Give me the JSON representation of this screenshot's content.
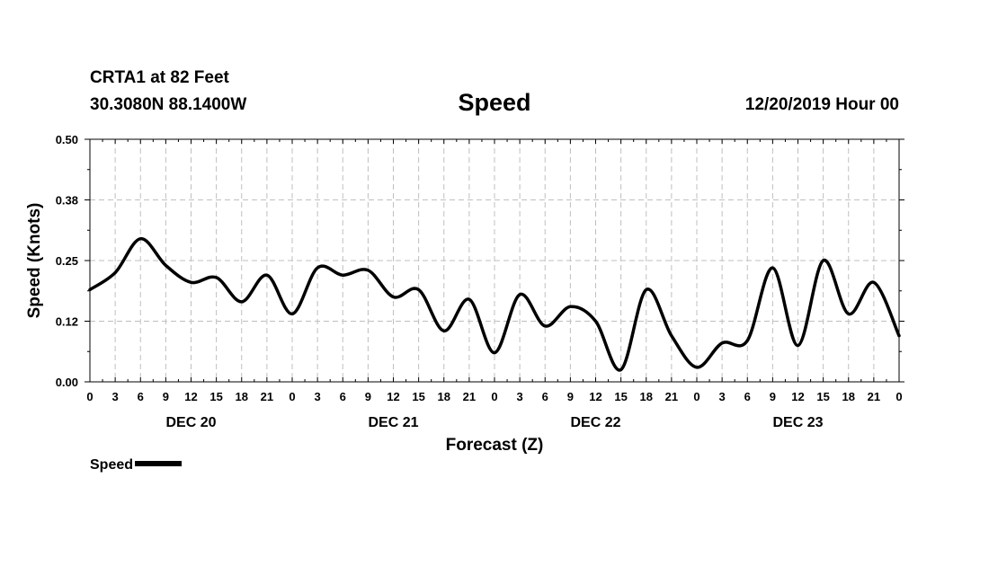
{
  "header": {
    "station": "CRTA1 at 82 Feet",
    "coords": "30.3080N 88.1400W",
    "title": "Speed",
    "timestamp": "12/20/2019 Hour 00"
  },
  "chart_data": {
    "type": "line",
    "title": "Speed",
    "xlabel": "Forecast (Z)",
    "ylabel": "Speed (Knots)",
    "ylim": [
      0,
      0.5
    ],
    "xlim": [
      0,
      96
    ],
    "y_ticks": [
      "0.00",
      "0.12",
      "0.25",
      "0.38",
      "0.50"
    ],
    "x_tick_labels": [
      "0",
      "3",
      "6",
      "9",
      "12",
      "15",
      "18",
      "21",
      "0",
      "3",
      "6",
      "9",
      "12",
      "15",
      "18",
      "21",
      "0",
      "3",
      "6",
      "9",
      "12",
      "15",
      "18",
      "21",
      "0",
      "3",
      "6",
      "9",
      "12",
      "15",
      "18",
      "21",
      "0"
    ],
    "day_labels": [
      "DEC 20",
      "DEC 21",
      "DEC 22",
      "DEC 23"
    ],
    "grid": true,
    "legend_position": "bottom-left",
    "series": [
      {
        "name": "Speed",
        "color": "#000000",
        "x": [
          0,
          3,
          6,
          9,
          12,
          15,
          18,
          21,
          24,
          27,
          30,
          33,
          36,
          39,
          42,
          45,
          48,
          51,
          54,
          57,
          60,
          63,
          66,
          69,
          72,
          75,
          78,
          81,
          84,
          87,
          90,
          93,
          96
        ],
        "y": [
          0.19,
          0.225,
          0.295,
          0.24,
          0.205,
          0.215,
          0.165,
          0.22,
          0.14,
          0.235,
          0.22,
          0.23,
          0.175,
          0.19,
          0.105,
          0.17,
          0.06,
          0.18,
          0.115,
          0.155,
          0.125,
          0.025,
          0.19,
          0.095,
          0.03,
          0.08,
          0.085,
          0.235,
          0.075,
          0.25,
          0.14,
          0.205,
          0.095
        ]
      }
    ]
  }
}
